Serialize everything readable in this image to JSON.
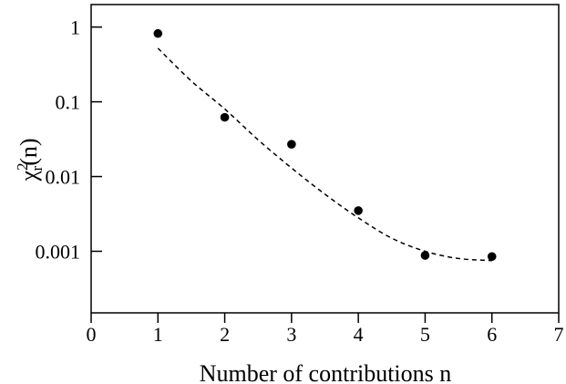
{
  "chart_data": {
    "type": "scatter",
    "xlabel": "Number of contributions n",
    "ylabel": {
      "base": "χ",
      "superscript": "2",
      "subscript": "r",
      "suffix": "(n)"
    },
    "xlim": [
      0,
      7
    ],
    "ylim": [
      0.00015,
      2.0
    ],
    "yscale": "log",
    "grid": false,
    "xticks": [
      "0",
      "1",
      "2",
      "3",
      "4",
      "5",
      "6",
      "7"
    ],
    "yticks": [
      {
        "value": 1,
        "label": "1"
      },
      {
        "value": 0.1,
        "label": "0.1"
      },
      {
        "value": 0.01,
        "label": "0.01"
      },
      {
        "value": 0.001,
        "label": "0.001"
      }
    ],
    "series": [
      {
        "kind": "points",
        "marker": "filled-circle",
        "color": "#000000",
        "x": [
          1,
          2,
          3,
          4,
          5,
          6
        ],
        "y": [
          0.82,
          0.062,
          0.027,
          0.0035,
          0.00088,
          0.00085
        ]
      },
      {
        "kind": "fit-curve",
        "style": "dashed",
        "color": "#000000",
        "x": [
          1.0,
          1.5,
          2.0,
          2.5,
          3.0,
          3.5,
          4.0,
          4.5,
          5.0,
          5.5,
          6.0
        ],
        "y": [
          0.52,
          0.19,
          0.08,
          0.031,
          0.013,
          0.0058,
          0.0028,
          0.0015,
          0.001,
          0.0008,
          0.00075
        ]
      }
    ]
  }
}
